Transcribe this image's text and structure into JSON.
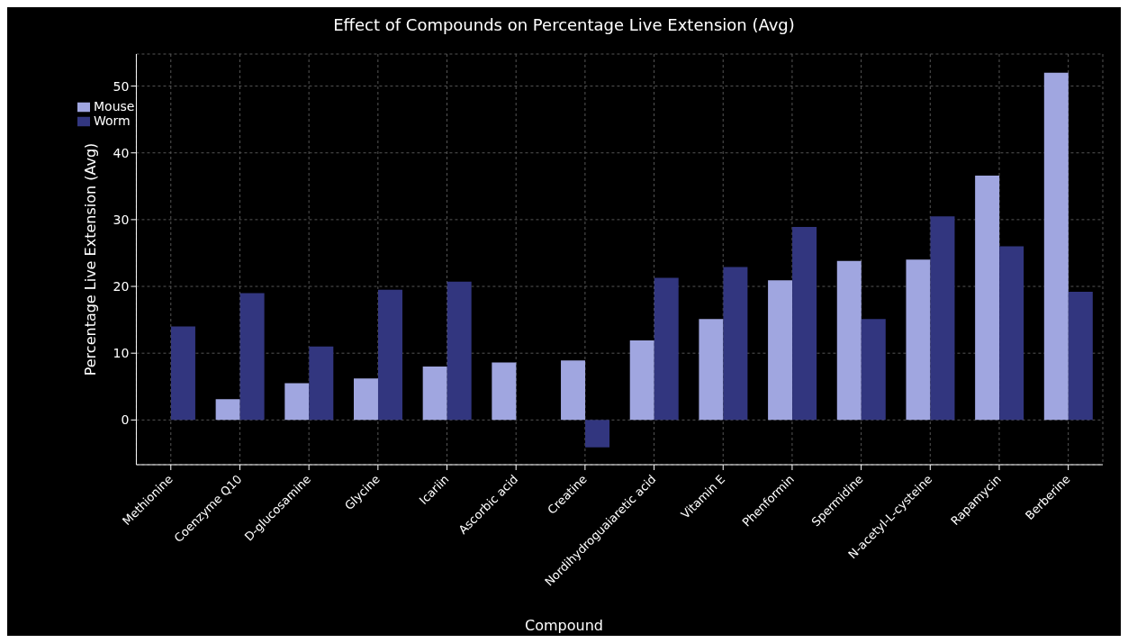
{
  "chart_data": {
    "type": "bar",
    "title": "Effect of Compounds on Percentage Live Extension (Avg)",
    "xlabel": "Compound",
    "ylabel": "Percentage Live Extension (Avg)",
    "categories": [
      "Methionine",
      "Coenzyme Q10",
      "D-glucosamine",
      "Glycine",
      "Icariin",
      "Ascorbic acid",
      "Creatine",
      "Nordihydroguaiaretic acid",
      "Vitamin E",
      "Phenformin",
      "Spermidine",
      "N-acetyl-L-cysteine",
      "Rapamycin",
      "Berberine"
    ],
    "series": [
      {
        "name": "Mouse",
        "color": "#a0a6e0",
        "values": [
          null,
          3.1,
          5.5,
          6.2,
          8.0,
          8.6,
          8.9,
          11.9,
          15.1,
          20.9,
          23.8,
          24.0,
          36.6,
          52.0
        ]
      },
      {
        "name": "Worm",
        "color": "#32367f",
        "values": [
          14.0,
          19.0,
          11.0,
          19.5,
          20.7,
          null,
          -4.1,
          21.3,
          22.9,
          28.9,
          15.1,
          30.5,
          26.0,
          19.2
        ]
      }
    ],
    "ylim": [
      -6.7,
      54.8
    ],
    "yticks": [
      0,
      10,
      20,
      30,
      40,
      50
    ],
    "grid": true,
    "legend": "top left"
  }
}
